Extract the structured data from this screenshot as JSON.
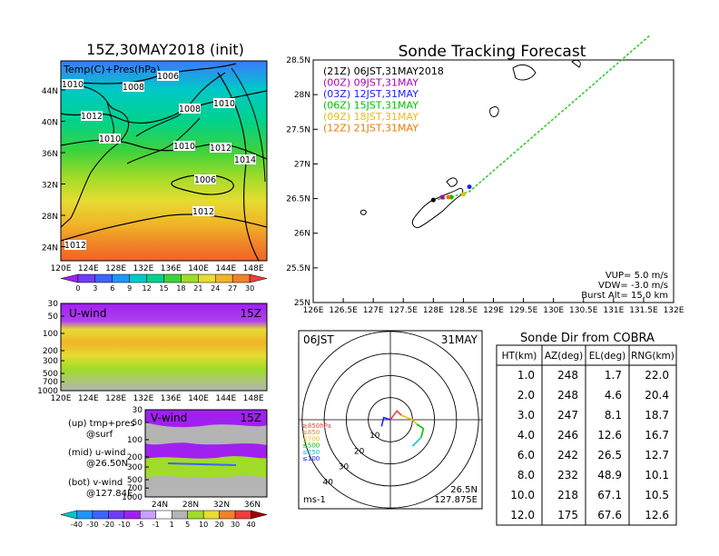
{
  "map_panel": {
    "title": "15Z,30MAY2018 (init)",
    "overlay_label": "Temp(C)+Pres(hPa)",
    "lat_labels": [
      "44N",
      "40N",
      "36N",
      "32N",
      "28N",
      "24N"
    ],
    "lon_labels": [
      "120E",
      "124E",
      "128E",
      "132E",
      "136E",
      "140E",
      "144E",
      "148E"
    ],
    "isobar_labels": [
      "1010",
      "1008",
      "1006",
      "1012",
      "1008",
      "1010",
      "1010",
      "1010",
      "1012",
      "1014",
      "1006",
      "1012",
      "1012"
    ],
    "colorbar_ticks": [
      "0",
      "3",
      "6",
      "9",
      "12",
      "15",
      "18",
      "21",
      "24",
      "27",
      "30"
    ],
    "colorbar_colors": [
      "#a020f0",
      "#6e3cff",
      "#3c64ff",
      "#1e96ff",
      "#00c8c8",
      "#00d28c",
      "#3cd23c",
      "#a0dc28",
      "#e6dc32",
      "#f0b428",
      "#f08228",
      "#f03c3c"
    ]
  },
  "u_panel": {
    "label": "U-wind",
    "time": "15Z",
    "y_labels": [
      "30",
      "50",
      "100",
      "200",
      "300",
      "500",
      "700",
      "1000"
    ],
    "x_labels": [
      "120E",
      "124E",
      "128E",
      "132E",
      "136E",
      "140E",
      "144E",
      "148E"
    ]
  },
  "v_panel": {
    "label": "V-wind",
    "time": "15Z",
    "y_labels": [
      "30",
      "50",
      "100",
      "200",
      "300",
      "500",
      "700",
      "1000"
    ],
    "x_labels": [
      "24N",
      "28N",
      "32N",
      "36N"
    ]
  },
  "notes": {
    "up": [
      "(up) tmp+pres",
      "@surf"
    ],
    "mid": [
      "(mid) u-wind",
      "@26.50N"
    ],
    "bot": [
      "(bot) v-wind",
      "@127.84E"
    ]
  },
  "wind_colorbar": {
    "ticks": [
      "-40",
      "-30",
      "-20",
      "-10",
      "-5",
      "-1",
      "1",
      "5",
      "10",
      "20",
      "30",
      "40"
    ],
    "colors": [
      "#00c8c8",
      "#1e96ff",
      "#3c64ff",
      "#6e3cff",
      "#a020f0",
      "#c8a0ff",
      "#ffffff",
      "#b4b4b4",
      "#a0dc28",
      "#e6dc32",
      "#f08228",
      "#f03c3c",
      "#a00000"
    ]
  },
  "tracking": {
    "title": "Sonde Tracking Forecast",
    "legend": [
      {
        "text": "(21Z)  06JST,31MAY2018",
        "color": "#000000"
      },
      {
        "text": "(00Z)  09JST,31MAY",
        "color": "#b000b0"
      },
      {
        "text": "(03Z)  12JST,31MAY",
        "color": "#2020ff"
      },
      {
        "text": "(06Z)  15JST,31MAY",
        "color": "#00c000"
      },
      {
        "text": "(09Z)  18JST,31MAY",
        "color": "#e8c000"
      },
      {
        "text": "(12Z)  21JST,31MAY",
        "color": "#f07800"
      }
    ],
    "lat_labels": [
      "28.5N",
      "28N",
      "27.5N",
      "27N",
      "26.5N",
      "26N",
      "25.5N",
      "25N"
    ],
    "lon_labels": [
      "126E",
      "126.5E",
      "127E",
      "127.5E",
      "128E",
      "128.5E",
      "129E",
      "129.5E",
      "130E",
      "130.5E",
      "131E",
      "131.5E",
      "132E"
    ],
    "params": [
      "VUP=  5.0 m/s",
      "VDW= -3.0 m/s",
      "Burst Alt=  15.0 km"
    ],
    "track_color": "#22cc22"
  },
  "hodo": {
    "time_label": "06JST",
    "date_label": "31MAY",
    "ring_labels": [
      "10",
      "20",
      "30",
      "40"
    ],
    "legend": [
      {
        "text": "≥850hPa",
        "color": "#f03c3c"
      },
      {
        "text": "≤850",
        "color": "#f08228"
      },
      {
        "text": "≤700",
        "color": "#e8c000"
      },
      {
        "text": "≤500",
        "color": "#00c000"
      },
      {
        "text": "≤250",
        "color": "#00c8c8"
      },
      {
        "text": "≤100",
        "color": "#2020ff"
      }
    ],
    "unit": "ms-1",
    "location": [
      "26.5N",
      "127.875E"
    ]
  },
  "sonde_table": {
    "title": "Sonde Dir from COBRA",
    "headers": [
      "HT(km)",
      "AZ(deg)",
      "EL(deg)",
      "RNG(km)"
    ],
    "rows": [
      [
        "1.0",
        "248",
        "1.7",
        "22.0"
      ],
      [
        "2.0",
        "248",
        "4.6",
        "20.4"
      ],
      [
        "3.0",
        "247",
        "8.1",
        "18.7"
      ],
      [
        "4.0",
        "246",
        "12.6",
        "16.7"
      ],
      [
        "6.0",
        "242",
        "26.5",
        "12.7"
      ],
      [
        "8.0",
        "232",
        "48.9",
        "10.1"
      ],
      [
        "10.0",
        "218",
        "67.1",
        "10.5"
      ],
      [
        "12.0",
        "175",
        "67.6",
        "12.6"
      ]
    ]
  },
  "chart_data": [
    {
      "type": "heatmap",
      "title": "15Z,30MAY2018 (init)",
      "field": "Temp(C)+Pres(hPa)",
      "xlim": [
        120,
        150
      ],
      "ylim": [
        22,
        48
      ],
      "colorbar": [
        0,
        3,
        6,
        9,
        12,
        15,
        18,
        21,
        24,
        27,
        30
      ]
    },
    {
      "type": "heatmap",
      "title": "U-wind",
      "xlim": [
        120,
        150
      ],
      "ylim": [
        1000,
        30
      ],
      "yscale": "log"
    },
    {
      "type": "heatmap",
      "title": "V-wind",
      "xlim": [
        22,
        38
      ],
      "ylim": [
        1000,
        30
      ],
      "yscale": "log",
      "colorbar": [
        -40,
        -30,
        -20,
        -10,
        -5,
        -1,
        1,
        5,
        10,
        20,
        30,
        40
      ]
    },
    {
      "type": "line",
      "title": "Sonde Tracking Forecast",
      "xlabel": "",
      "ylabel": "",
      "xlim": [
        126,
        132
      ],
      "ylim": [
        25,
        28.5
      ],
      "series": [
        {
          "x": [
            128.0,
            128.2,
            128.4,
            128.6,
            129.2,
            129.8,
            130.4,
            131.0,
            131.6
          ],
          "y": [
            26.48,
            26.5,
            26.55,
            26.6,
            27.05,
            27.5,
            27.95,
            28.4,
            28.85
          ]
        }
      ],
      "points": [
        {
          "x": 128.0,
          "y": 26.48,
          "color": "#000000"
        },
        {
          "x": 128.15,
          "y": 26.52,
          "color": "#b000b0"
        },
        {
          "x": 128.6,
          "y": 26.67,
          "color": "#2020ff"
        },
        {
          "x": 128.3,
          "y": 26.52,
          "color": "#00c000"
        },
        {
          "x": 128.5,
          "y": 26.56,
          "color": "#e8c000"
        },
        {
          "x": 128.25,
          "y": 26.52,
          "color": "#f07800"
        }
      ]
    },
    {
      "type": "line",
      "title": "",
      "hodograph_rings_ms": [
        10,
        20,
        30,
        40
      ],
      "series": [
        {
          "name": "≥850hPa",
          "u": [
            0,
            3,
            5
          ],
          "v": [
            0,
            4,
            2
          ]
        },
        {
          "name": "≤700",
          "u": [
            5,
            10,
            12
          ],
          "v": [
            2,
            0,
            -2
          ]
        },
        {
          "name": "≤500",
          "u": [
            12,
            15,
            14
          ],
          "v": [
            -2,
            -4,
            -8
          ]
        },
        {
          "name": "≤250",
          "u": [
            14,
            12,
            10
          ],
          "v": [
            -8,
            -10,
            -12
          ]
        },
        {
          "name": "≤100",
          "u": [
            0,
            -3,
            -4
          ],
          "v": [
            0,
            1,
            -3
          ]
        }
      ]
    },
    {
      "type": "table",
      "title": "Sonde Dir from COBRA",
      "columns": [
        "HT(km)",
        "AZ(deg)",
        "EL(deg)",
        "RNG(km)"
      ],
      "rows": [
        [
          1.0,
          248,
          1.7,
          22.0
        ],
        [
          2.0,
          248,
          4.6,
          20.4
        ],
        [
          3.0,
          247,
          8.1,
          18.7
        ],
        [
          4.0,
          246,
          12.6,
          16.7
        ],
        [
          6.0,
          242,
          26.5,
          12.7
        ],
        [
          8.0,
          232,
          48.9,
          10.1
        ],
        [
          10.0,
          218,
          67.1,
          10.5
        ],
        [
          12.0,
          175,
          67.6,
          12.6
        ]
      ]
    }
  ]
}
